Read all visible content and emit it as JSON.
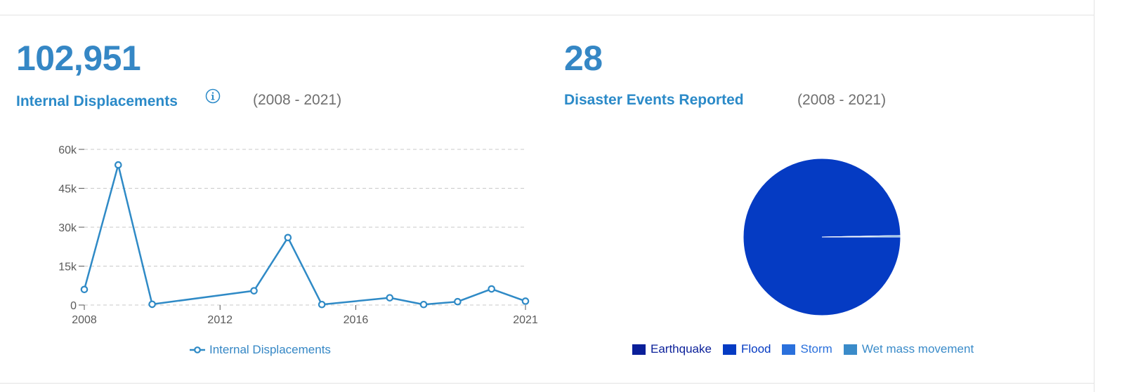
{
  "panels": {
    "displacements": {
      "total": "102,951",
      "label": "Internal Displacements",
      "period": "(2008 - 2021)"
    },
    "events": {
      "total": "28",
      "label": "Disaster Events Reported",
      "period": "(2008 - 2021)"
    }
  },
  "colors": {
    "accent": "#3587c5",
    "label": "#2b8ac8",
    "line": "#2f8ac6",
    "gray_text": "#6f6f6f"
  },
  "icons": {
    "info": "info-circle-icon"
  },
  "chart_data": [
    {
      "type": "line",
      "title": "",
      "xlabel": "",
      "ylabel": "",
      "x": [
        2008,
        2009,
        2010,
        2013,
        2014,
        2015,
        2017,
        2018,
        2019,
        2020,
        2021
      ],
      "series": [
        {
          "name": "Internal Displacements",
          "values": [
            6000,
            54000,
            300,
            5500,
            26000,
            200,
            2800,
            200,
            1300,
            6200,
            1500
          ]
        }
      ],
      "xlim": [
        2008,
        2021
      ],
      "ylim": [
        0,
        60000
      ],
      "xticks": [
        2008,
        2012,
        2016,
        2021
      ],
      "yticks": [
        0,
        15000,
        30000,
        45000,
        60000
      ],
      "ytick_labels": [
        "0",
        "15k",
        "30k",
        "45k",
        "60k"
      ],
      "grid": "horizontal dashed",
      "legend": "bottom"
    },
    {
      "type": "pie",
      "title": "",
      "categories": [
        "Earthquake",
        "Flood",
        "Storm",
        "Wet mass movement"
      ],
      "values": [
        0.3,
        102600,
        0.3,
        300
      ],
      "colors": [
        "#0a1f99",
        "#053bc3",
        "#2a70dc",
        "#3a8bc9"
      ],
      "legend": "bottom"
    }
  ]
}
